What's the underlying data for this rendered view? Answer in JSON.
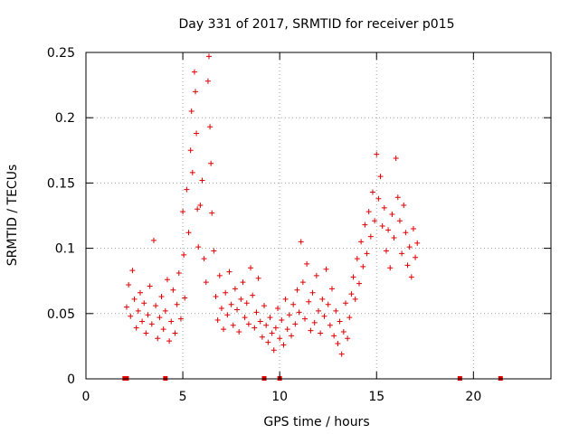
{
  "chart_data": {
    "type": "scatter",
    "title": "Day 331 of 2017, SRMTID for receiver p015",
    "xlabel": "GPS time / hours",
    "ylabel": "SRMTID / TECUs",
    "xlim": [
      0,
      24
    ],
    "ylim": [
      0,
      0.25
    ],
    "xticks": [
      0,
      5,
      10,
      15,
      20
    ],
    "xtick_labels": [
      "0",
      "5",
      "10",
      "15",
      "20"
    ],
    "yticks": [
      0,
      0.05,
      0.1,
      0.15,
      0.2,
      0.25
    ],
    "ytick_labels": [
      "0",
      "0.05",
      "0.1",
      "0.15",
      "0.2",
      "0.25"
    ],
    "grid": true,
    "marker_color": "#e00000",
    "marker": "plus",
    "series": [
      {
        "name": "SRMTID",
        "points": [
          [
            2.1,
            0.055
          ],
          [
            2.2,
            0.072
          ],
          [
            2.3,
            0.048
          ],
          [
            2.4,
            0.083
          ],
          [
            2.5,
            0.061
          ],
          [
            2.6,
            0.039
          ],
          [
            2.7,
            0.052
          ],
          [
            2.8,
            0.066
          ],
          [
            2.9,
            0.044
          ],
          [
            3.0,
            0.058
          ],
          [
            3.1,
            0.035
          ],
          [
            3.2,
            0.049
          ],
          [
            3.3,
            0.071
          ],
          [
            3.4,
            0.042
          ],
          [
            3.5,
            0.106
          ],
          [
            3.6,
            0.056
          ],
          [
            3.7,
            0.031
          ],
          [
            3.8,
            0.047
          ],
          [
            3.9,
            0.063
          ],
          [
            4.0,
            0.038
          ],
          [
            4.1,
            0.052
          ],
          [
            4.2,
            0.076
          ],
          [
            4.3,
            0.029
          ],
          [
            4.4,
            0.044
          ],
          [
            4.5,
            0.068
          ],
          [
            4.6,
            0.035
          ],
          [
            4.7,
            0.057
          ],
          [
            4.8,
            0.081
          ],
          [
            4.9,
            0.046
          ],
          [
            5.0,
            0.128
          ],
          [
            5.05,
            0.095
          ],
          [
            5.1,
            0.062
          ],
          [
            5.2,
            0.145
          ],
          [
            5.3,
            0.112
          ],
          [
            5.4,
            0.175
          ],
          [
            5.45,
            0.205
          ],
          [
            5.5,
            0.158
          ],
          [
            5.6,
            0.235
          ],
          [
            5.65,
            0.22
          ],
          [
            5.7,
            0.188
          ],
          [
            5.75,
            0.13
          ],
          [
            5.8,
            0.101
          ],
          [
            5.9,
            0.133
          ],
          [
            6.0,
            0.152
          ],
          [
            6.1,
            0.092
          ],
          [
            6.2,
            0.074
          ],
          [
            6.3,
            0.228
          ],
          [
            6.35,
            0.247
          ],
          [
            6.4,
            0.193
          ],
          [
            6.45,
            0.165
          ],
          [
            6.5,
            0.127
          ],
          [
            6.6,
            0.098
          ],
          [
            6.7,
            0.063
          ],
          [
            6.8,
            0.045
          ],
          [
            6.9,
            0.079
          ],
          [
            7.0,
            0.054
          ],
          [
            7.1,
            0.038
          ],
          [
            7.2,
            0.066
          ],
          [
            7.3,
            0.049
          ],
          [
            7.4,
            0.082
          ],
          [
            7.5,
            0.057
          ],
          [
            7.6,
            0.041
          ],
          [
            7.7,
            0.069
          ],
          [
            7.8,
            0.053
          ],
          [
            7.9,
            0.036
          ],
          [
            8.0,
            0.061
          ],
          [
            8.1,
            0.074
          ],
          [
            8.2,
            0.047
          ],
          [
            8.3,
            0.058
          ],
          [
            8.4,
            0.042
          ],
          [
            8.5,
            0.085
          ],
          [
            8.6,
            0.064
          ],
          [
            8.7,
            0.039
          ],
          [
            8.8,
            0.051
          ],
          [
            8.9,
            0.077
          ],
          [
            9.0,
            0.044
          ],
          [
            9.1,
            0.032
          ],
          [
            9.2,
            0.056
          ],
          [
            9.3,
            0.041
          ],
          [
            9.4,
            0.028
          ],
          [
            9.5,
            0.047
          ],
          [
            9.6,
            0.035
          ],
          [
            9.7,
            0.022
          ],
          [
            9.8,
            0.039
          ],
          [
            9.9,
            0.054
          ],
          [
            10.0,
            0.031
          ],
          [
            10.1,
            0.045
          ],
          [
            10.2,
            0.026
          ],
          [
            10.3,
            0.061
          ],
          [
            10.4,
            0.038
          ],
          [
            10.5,
            0.049
          ],
          [
            10.6,
            0.033
          ],
          [
            10.7,
            0.057
          ],
          [
            10.8,
            0.042
          ],
          [
            10.9,
            0.068
          ],
          [
            11.0,
            0.051
          ],
          [
            11.1,
            0.105
          ],
          [
            11.2,
            0.074
          ],
          [
            11.3,
            0.046
          ],
          [
            11.4,
            0.088
          ],
          [
            11.5,
            0.059
          ],
          [
            11.6,
            0.037
          ],
          [
            11.7,
            0.066
          ],
          [
            11.8,
            0.043
          ],
          [
            11.9,
            0.079
          ],
          [
            12.0,
            0.052
          ],
          [
            12.1,
            0.035
          ],
          [
            12.2,
            0.061
          ],
          [
            12.3,
            0.048
          ],
          [
            12.4,
            0.084
          ],
          [
            12.5,
            0.057
          ],
          [
            12.6,
            0.041
          ],
          [
            12.7,
            0.069
          ],
          [
            12.8,
            0.033
          ],
          [
            12.9,
            0.052
          ],
          [
            13.0,
            0.027
          ],
          [
            13.1,
            0.044
          ],
          [
            13.2,
            0.019
          ],
          [
            13.3,
            0.036
          ],
          [
            13.4,
            0.058
          ],
          [
            13.5,
            0.031
          ],
          [
            13.6,
            0.047
          ],
          [
            13.7,
            0.065
          ],
          [
            13.8,
            0.078
          ],
          [
            13.9,
            0.061
          ],
          [
            14.0,
            0.092
          ],
          [
            14.1,
            0.073
          ],
          [
            14.2,
            0.105
          ],
          [
            14.3,
            0.086
          ],
          [
            14.4,
            0.118
          ],
          [
            14.5,
            0.096
          ],
          [
            14.6,
            0.128
          ],
          [
            14.7,
            0.109
          ],
          [
            14.8,
            0.143
          ],
          [
            14.9,
            0.121
          ],
          [
            15.0,
            0.172
          ],
          [
            15.1,
            0.138
          ],
          [
            15.2,
            0.155
          ],
          [
            15.3,
            0.117
          ],
          [
            15.4,
            0.131
          ],
          [
            15.5,
            0.098
          ],
          [
            15.6,
            0.114
          ],
          [
            15.7,
            0.085
          ],
          [
            15.8,
            0.126
          ],
          [
            15.9,
            0.108
          ],
          [
            16.0,
            0.169
          ],
          [
            16.1,
            0.139
          ],
          [
            16.2,
            0.121
          ],
          [
            16.3,
            0.096
          ],
          [
            16.4,
            0.133
          ],
          [
            16.5,
            0.112
          ],
          [
            16.6,
            0.087
          ],
          [
            16.7,
            0.101
          ],
          [
            16.8,
            0.078
          ],
          [
            16.9,
            0.115
          ],
          [
            17.0,
            0.093
          ],
          [
            17.1,
            0.104
          ]
        ]
      }
    ],
    "missing_data_markers_x": [
      2.0,
      2.1,
      4.1,
      9.2,
      10.0,
      19.3,
      21.4
    ]
  }
}
